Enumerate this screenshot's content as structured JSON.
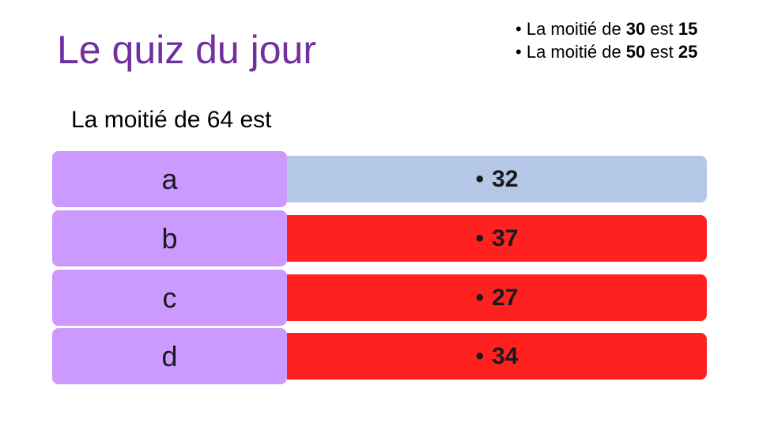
{
  "title": "Le quiz du jour",
  "hints": [
    {
      "prefix": "La moitié de ",
      "num": "30",
      "mid": " est ",
      "result": "15"
    },
    {
      "prefix": "La moitié de ",
      "num": "50",
      "mid": " est ",
      "result": "25"
    }
  ],
  "bullet": "•",
  "question": "La moitié de 64 est",
  "options": [
    {
      "letter": "a",
      "answer": "32",
      "color": "#b4c7e7"
    },
    {
      "letter": "b",
      "answer": "37",
      "color": "#ff2020"
    },
    {
      "letter": "c",
      "answer": "27",
      "color": "#ff2020"
    },
    {
      "letter": "d",
      "answer": "34",
      "color": "#ff2020"
    }
  ],
  "colors": {
    "title": "#7030a0",
    "letter_box": "#cc99ff",
    "correct": "#b4c7e7",
    "wrong": "#ff2020"
  }
}
